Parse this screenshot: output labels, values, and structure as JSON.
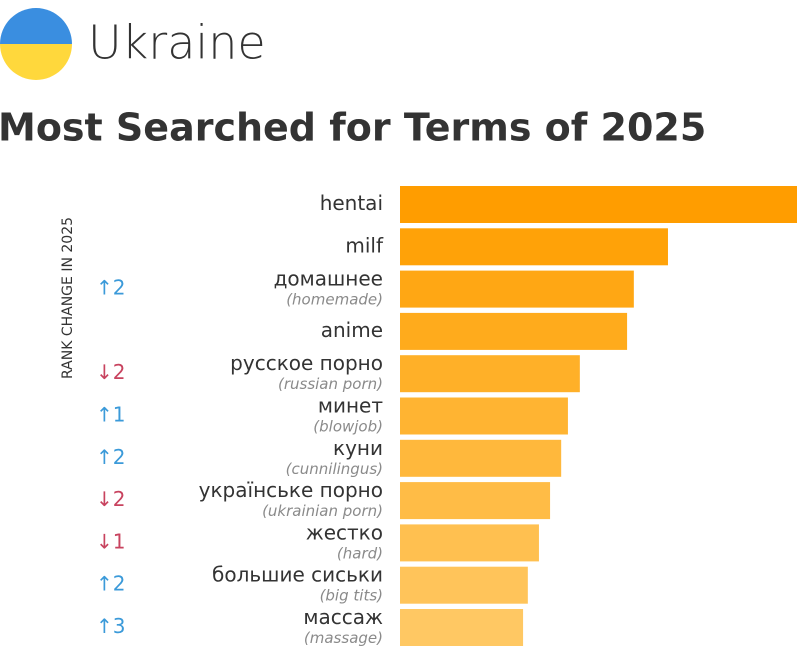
{
  "header": {
    "country": "Ukraine"
  },
  "chart_data": {
    "type": "bar",
    "orientation": "horizontal",
    "title": "Most Searched for Terms of 2025",
    "rank_change_label": "RANK CHANGE IN 2025",
    "categories": [
      "hentai",
      "milf",
      "домашнее",
      "anime",
      "русское порно",
      "минет",
      "куни",
      "українське порно",
      "жестко",
      "большие сиськи",
      "массаж"
    ],
    "translations": [
      null,
      null,
      "(homemade)",
      null,
      "(russian porn)",
      "(blowjob)",
      "(cunnilingus)",
      "(ukrainian porn)",
      "(hard)",
      "(big tits)",
      "(massage)"
    ],
    "rank_changes": [
      null,
      null,
      {
        "text": "↑2",
        "color": "#3b9ad9"
      },
      null,
      {
        "text": "↓2",
        "color": "#c8435f"
      },
      {
        "text": "↑1",
        "color": "#3b9ad9"
      },
      {
        "text": "↑2",
        "color": "#3b9ad9"
      },
      {
        "text": "↓2",
        "color": "#c8435f"
      },
      {
        "text": "↓1",
        "color": "#c8435f"
      },
      {
        "text": "↑2",
        "color": "#3b9ad9"
      },
      {
        "text": "↑3",
        "color": "#3b9ad9"
      }
    ],
    "values": [
      100,
      67.5,
      58.9,
      57.2,
      45.3,
      42.3,
      40.6,
      37.8,
      35.0,
      32.2,
      31.0
    ],
    "colors": [
      "#ff9d00",
      "#ffa208",
      "#ffa714",
      "#ffab1c",
      "#ffb028",
      "#ffb432",
      "#ffb83c",
      "#ffbc46",
      "#ffc050",
      "#ffc45a",
      "#ffc863"
    ],
    "xlim": [
      0,
      100
    ]
  }
}
